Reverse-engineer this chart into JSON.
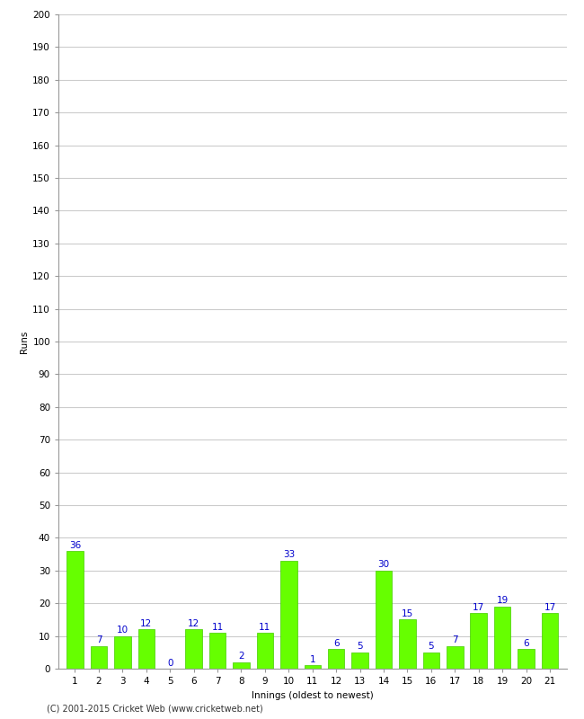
{
  "innings": [
    1,
    2,
    3,
    4,
    5,
    6,
    7,
    8,
    9,
    10,
    11,
    12,
    13,
    14,
    15,
    16,
    17,
    18,
    19,
    20,
    21
  ],
  "runs": [
    36,
    7,
    10,
    12,
    0,
    12,
    11,
    2,
    11,
    33,
    1,
    6,
    5,
    30,
    15,
    5,
    7,
    17,
    19,
    6,
    17
  ],
  "bar_color": "#66ff00",
  "bar_edge_color": "#44cc00",
  "label_color": "#0000cc",
  "ylabel": "Runs",
  "xlabel": "Innings (oldest to newest)",
  "ylim": [
    0,
    200
  ],
  "yticks": [
    0,
    10,
    20,
    30,
    40,
    50,
    60,
    70,
    80,
    90,
    100,
    110,
    120,
    130,
    140,
    150,
    160,
    170,
    180,
    190,
    200
  ],
  "grid_color": "#cccccc",
  "background_color": "#ffffff",
  "footer": "(C) 2001-2015 Cricket Web (www.cricketweb.net)",
  "label_fontsize": 7.5,
  "axis_fontsize": 7.5,
  "ylabel_fontsize": 7.5
}
